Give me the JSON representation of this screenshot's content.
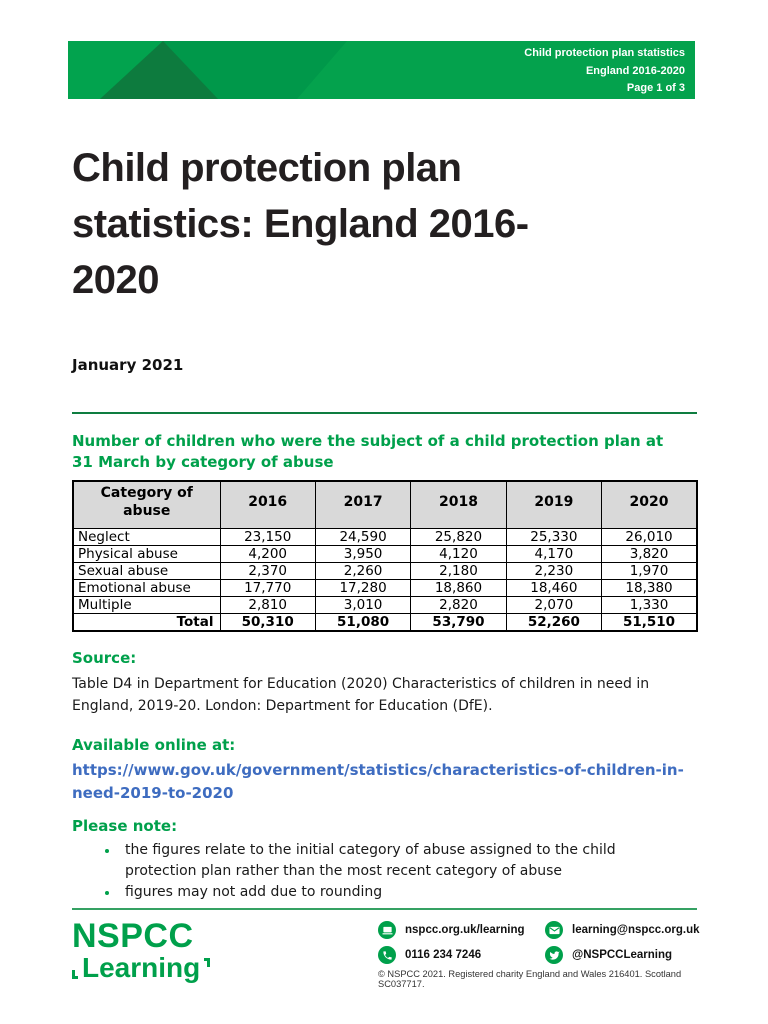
{
  "banner": {
    "lines": [
      "Child protection plan statistics",
      "England 2016-2020",
      "Page 1 of 3"
    ],
    "colors": {
      "base": "#00984a",
      "left": "#02a34e",
      "dark_triangle": "#0d7b3e",
      "right": "#04a24d"
    }
  },
  "title": {
    "text": "Child protection plan statistics: England 2016-2020",
    "lines": [
      "Child protection plan",
      "statistics: England 2016-",
      "2020"
    ]
  },
  "date": "January 2021",
  "table_section": {
    "heading": "Number of children who were the subject of a child protection plan at 31 March by category of abuse"
  },
  "table": {
    "columns": [
      "Category of abuse",
      "2016",
      "2017",
      "2018",
      "2019",
      "2020"
    ],
    "rows": [
      [
        "Neglect",
        "23,150",
        "24,590",
        "25,820",
        "25,330",
        "26,010"
      ],
      [
        "Physical abuse",
        "4,200",
        "3,950",
        "4,120",
        "4,170",
        "3,820"
      ],
      [
        "Sexual abuse",
        "2,370",
        "2,260",
        "2,180",
        "2,230",
        "1,970"
      ],
      [
        "Emotional abuse",
        "17,770",
        "17,280",
        "18,860",
        "18,460",
        "18,380"
      ],
      [
        "Multiple",
        "2,810",
        "3,010",
        "2,820",
        "2,070",
        "1,330"
      ]
    ],
    "total_row": [
      "Total",
      "50,310",
      "51,080",
      "53,790",
      "52,260",
      "51,510"
    ],
    "header_bg": "#d9d9d9"
  },
  "chart_data": {
    "type": "table",
    "title": "Number of children who were the subject of a child protection plan at 31 March by category of abuse",
    "categories": [
      "2016",
      "2017",
      "2018",
      "2019",
      "2020"
    ],
    "series": [
      {
        "name": "Neglect",
        "values": [
          23150,
          24590,
          25820,
          25330,
          26010
        ]
      },
      {
        "name": "Physical abuse",
        "values": [
          4200,
          3950,
          4120,
          4170,
          3820
        ]
      },
      {
        "name": "Sexual abuse",
        "values": [
          2370,
          2260,
          2180,
          2230,
          1970
        ]
      },
      {
        "name": "Emotional abuse",
        "values": [
          17770,
          17280,
          18860,
          18460,
          18380
        ]
      },
      {
        "name": "Multiple",
        "values": [
          2810,
          3010,
          2820,
          2070,
          1330
        ]
      },
      {
        "name": "Total",
        "values": [
          50310,
          51080,
          53790,
          52260,
          51510
        ]
      }
    ]
  },
  "source": {
    "label": "Source:",
    "text": "Table D4 in Department for Education (2020) Characteristics of children in need in England, 2019-20. London: Department for Education (DfE)."
  },
  "online": {
    "label": "Available online at:",
    "url": "https://www.gov.uk/government/statistics/characteristics-of-children-in-need-2019-to-2020"
  },
  "note": {
    "label": "Please note:",
    "bullets": [
      "the figures relate to the initial category of abuse assigned to the child protection plan rather than the most recent category of abuse",
      "figures may not add due to rounding"
    ]
  },
  "footer": {
    "logo": {
      "line1": "NSPCC",
      "line2": "Learning"
    },
    "contacts": [
      {
        "icon": "website-icon",
        "label": "nspcc.org.uk/learning"
      },
      {
        "icon": "email-icon",
        "label": "learning@nspcc.org.uk"
      },
      {
        "icon": "phone-icon",
        "label": "0116 234 7246"
      },
      {
        "icon": "twitter-icon",
        "label": "@NSPCCLearning"
      }
    ],
    "small_print": "© NSPCC 2021. Registered charity England and Wales 216401. Scotland SC037717."
  },
  "colors": {
    "brand_green": "#00a04b",
    "heading_green": "#00a04b",
    "link_blue": "#3e6cc0",
    "rule_green": "#0e7d40"
  }
}
